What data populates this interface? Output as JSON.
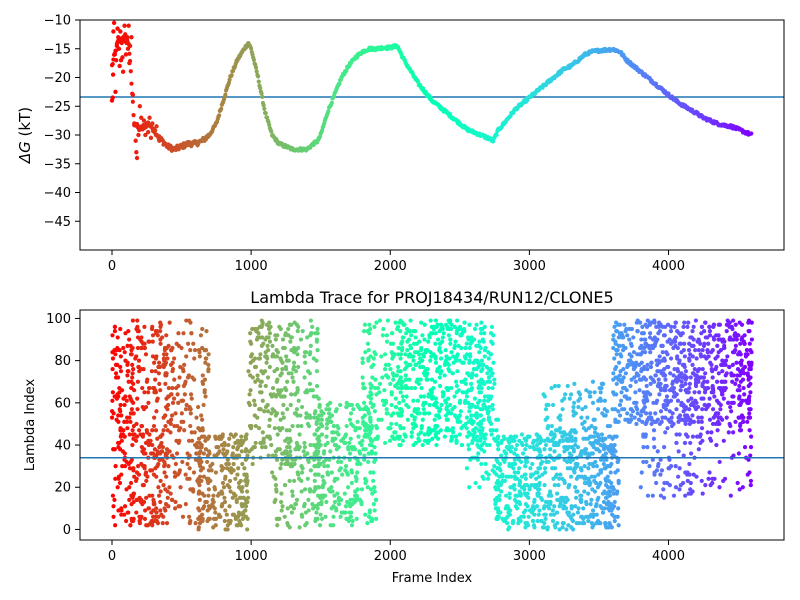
{
  "chart_data": [
    {
      "type": "scatter",
      "title": "",
      "xlabel": "",
      "ylabel": "ΔG (kT)",
      "xlim": [
        -230,
        4830
      ],
      "ylim": [
        -50,
        -10
      ],
      "xticks": [
        0,
        1000,
        2000,
        3000,
        4000
      ],
      "yticks": [
        -45,
        -40,
        -35,
        -30,
        -25,
        -20,
        -15,
        -10
      ],
      "xtick_labels": [
        "0",
        "1000",
        "2000",
        "3000",
        "4000"
      ],
      "ytick_labels": [
        "−45",
        "−40",
        "−35",
        "−30",
        "−25",
        "−20",
        "−15",
        "−10"
      ],
      "grid": false,
      "hline": {
        "y": -23.4,
        "color": "#1f77b4"
      },
      "color_scale": "rainbow (red → yellow → green → cyan → blue → violet with increasing frame index)",
      "trajectory_x": [
        0,
        40,
        80,
        120,
        160,
        200,
        260,
        300,
        340,
        400,
        450,
        500,
        550,
        600,
        650,
        700,
        750,
        800,
        850,
        900,
        950,
        980,
        1000,
        1050,
        1100,
        1150,
        1200,
        1250,
        1300,
        1350,
        1400,
        1450,
        1480,
        1500,
        1550,
        1600,
        1650,
        1700,
        1750,
        1800,
        1850,
        1900,
        1950,
        2000,
        2050,
        2100,
        2150,
        2200,
        2250,
        2300,
        2350,
        2400,
        2450,
        2500,
        2550,
        2600,
        2650,
        2700,
        2740,
        2780,
        2800,
        2850,
        2900,
        2950,
        3000,
        3050,
        3100,
        3150,
        3200,
        3250,
        3300,
        3350,
        3400,
        3450,
        3500,
        3550,
        3600,
        3650,
        3700,
        3750,
        3800,
        3850,
        3900,
        3950,
        4000,
        4050,
        4100,
        4150,
        4200,
        4250,
        4300,
        4350,
        4400,
        4450,
        4500,
        4550,
        4600
      ],
      "trajectory_y": [
        -18,
        -14,
        -13,
        -14,
        -28,
        -29,
        -28,
        -29,
        -30.5,
        -32,
        -32.5,
        -32,
        -31.5,
        -31.5,
        -31,
        -30,
        -28,
        -24,
        -20,
        -17,
        -15,
        -14,
        -15,
        -20,
        -26,
        -30,
        -31.5,
        -32,
        -32.5,
        -32.5,
        -32.5,
        -31.5,
        -31,
        -30,
        -26,
        -23,
        -20,
        -18,
        -16.5,
        -15.5,
        -15,
        -15,
        -14.8,
        -14.8,
        -14.5,
        -17,
        -19,
        -21,
        -22.5,
        -24,
        -25,
        -26,
        -27,
        -28,
        -29,
        -29.5,
        -30,
        -30.5,
        -31,
        -29,
        -28.5,
        -27,
        -25.5,
        -24.5,
        -23.5,
        -22.5,
        -21.5,
        -20.5,
        -19.5,
        -18.5,
        -18,
        -17,
        -16,
        -15.5,
        -15.3,
        -15.2,
        -15.1,
        -15.5,
        -17,
        -18,
        -19,
        -20,
        -21,
        -22,
        -23,
        -24,
        -24.8,
        -25.5,
        -26.2,
        -27,
        -27.5,
        -28,
        -28.3,
        -28.5,
        -29,
        -29.5,
        -30
      ],
      "early_scatter_points": [
        [
          0,
          -24
        ],
        [
          5,
          -23.5
        ],
        [
          8,
          -19.5
        ],
        [
          10,
          -12
        ],
        [
          15,
          -10.5
        ],
        [
          20,
          -16
        ],
        [
          25,
          -22.5
        ],
        [
          30,
          -17
        ],
        [
          35,
          -14.5
        ],
        [
          40,
          -11.5
        ],
        [
          45,
          -13
        ],
        [
          50,
          -15
        ],
        [
          55,
          -18
        ],
        [
          60,
          -12
        ],
        [
          65,
          -17
        ],
        [
          70,
          -14
        ],
        [
          75,
          -16.5
        ],
        [
          80,
          -19
        ],
        [
          85,
          -13.5
        ],
        [
          90,
          -11
        ],
        [
          95,
          -12.5
        ],
        [
          100,
          -16
        ],
        [
          105,
          -14
        ],
        [
          110,
          -13
        ],
        [
          115,
          -15
        ],
        [
          120,
          -11
        ],
        [
          125,
          -17.5
        ],
        [
          130,
          -14.5
        ],
        [
          140,
          -13
        ],
        [
          150,
          -23
        ],
        [
          160,
          -28
        ],
        [
          170,
          -31
        ],
        [
          175,
          -33
        ],
        [
          180,
          -34
        ],
        [
          190,
          -30
        ],
        [
          200,
          -25
        ],
        [
          210,
          -27
        ],
        [
          220,
          -29
        ],
        [
          230,
          -27.5
        ],
        [
          240,
          -30
        ],
        [
          250,
          -28
        ],
        [
          260,
          -29.5
        ],
        [
          270,
          -27
        ],
        [
          280,
          -30.5
        ],
        [
          290,
          -28
        ],
        [
          300,
          -29
        ],
        [
          320,
          -28.5
        ],
        [
          340,
          -31
        ]
      ]
    },
    {
      "type": "scatter",
      "title": "Lambda Trace for PROJ18434/RUN12/CLONE5",
      "xlabel": "Frame Index",
      "ylabel": "Lambda Index",
      "xlim": [
        -230,
        4830
      ],
      "ylim": [
        -5,
        104
      ],
      "xticks": [
        0,
        1000,
        2000,
        3000,
        4000
      ],
      "yticks": [
        0,
        20,
        40,
        60,
        80,
        100
      ],
      "xtick_labels": [
        "0",
        "1000",
        "2000",
        "3000",
        "4000"
      ],
      "ytick_labels": [
        "0",
        "20",
        "40",
        "60",
        "80",
        "100"
      ],
      "grid": false,
      "hline": {
        "y": 34,
        "color": "#1f77b4"
      },
      "color_scale": "rainbow (red → yellow → green → cyan → blue → violet with increasing frame index)",
      "density_regions": [
        {
          "x_range": [
            0,
            100
          ],
          "y_range": [
            2,
            99
          ],
          "count": 90
        },
        {
          "x_range": [
            100,
            400
          ],
          "y_range": [
            2,
            99
          ],
          "count": 320
        },
        {
          "x_range": [
            400,
            700
          ],
          "y_range": [
            2,
            99
          ],
          "count": 180
        },
        {
          "x_range": [
            600,
            980
          ],
          "y_range": [
            0,
            45
          ],
          "count": 240
        },
        {
          "x_range": [
            980,
            1500
          ],
          "y_range": [
            30,
            99
          ],
          "count": 320
        },
        {
          "x_range": [
            1150,
            1500
          ],
          "y_range": [
            0,
            40
          ],
          "count": 90
        },
        {
          "x_range": [
            1450,
            1900
          ],
          "y_range": [
            2,
            60
          ],
          "count": 300
        },
        {
          "x_range": [
            1800,
            2050
          ],
          "y_range": [
            40,
            99
          ],
          "count": 130
        },
        {
          "x_range": [
            2050,
            2750
          ],
          "y_range": [
            40,
            99
          ],
          "count": 560
        },
        {
          "x_range": [
            2550,
            2780
          ],
          "y_range": [
            20,
            60
          ],
          "count": 60
        },
        {
          "x_range": [
            2750,
            3650
          ],
          "y_range": [
            0,
            45
          ],
          "count": 600
        },
        {
          "x_range": [
            3100,
            3620
          ],
          "y_range": [
            35,
            70
          ],
          "count": 140
        },
        {
          "x_range": [
            3600,
            4600
          ],
          "y_range": [
            50,
            99
          ],
          "count": 720
        },
        {
          "x_range": [
            3800,
            4600
          ],
          "y_range": [
            15,
            55
          ],
          "count": 150
        }
      ]
    }
  ]
}
